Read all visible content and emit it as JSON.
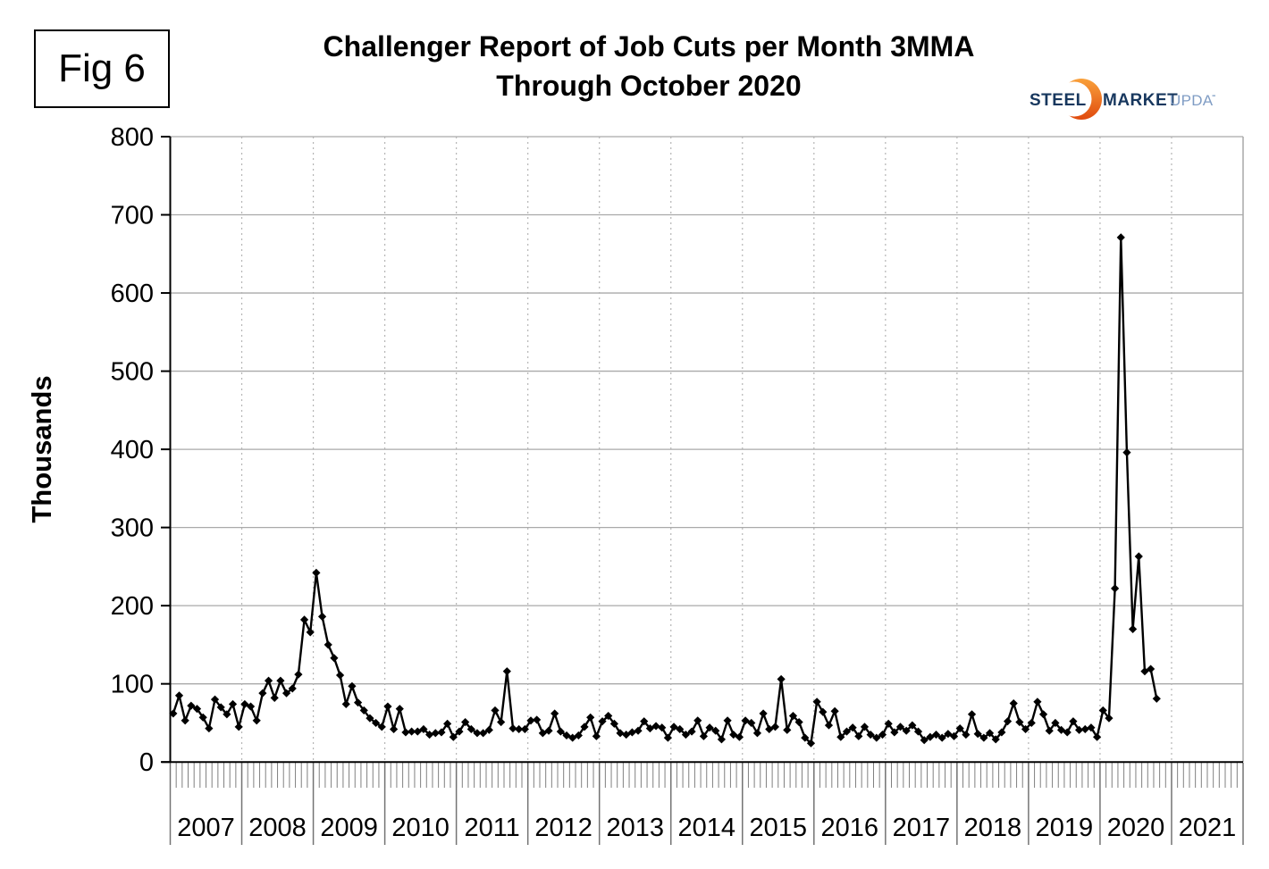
{
  "figure": {
    "label": "Fig 6"
  },
  "title": {
    "line1": "Challenger Report of Job Cuts per Month 3MMA",
    "line2": "Through October 2020"
  },
  "logo": {
    "steel": "STEEL",
    "market": "MARKET",
    "update": "UPDATE",
    "navy": "#17375e",
    "light_blue": "#7f9cc4",
    "orange_top": "#f9a13b",
    "orange_bottom": "#e04a0e"
  },
  "chart_data": {
    "type": "line",
    "title": "Challenger Report of Job Cuts per Month 3MMA",
    "subtitle": "Through October 2020",
    "xlabel": "",
    "ylabel": "Thousands",
    "ylim": [
      0,
      800
    ],
    "ytick_step": 100,
    "yticks": [
      0,
      100,
      200,
      300,
      400,
      500,
      600,
      700,
      800
    ],
    "x_year_labels": [
      "2007",
      "2008",
      "2009",
      "2010",
      "2011",
      "2012",
      "2013",
      "2014",
      "2015",
      "2016",
      "2017",
      "2018",
      "2019",
      "2020",
      "2021"
    ],
    "start_month": "2007-01",
    "end_month": "2020-10",
    "grid": true,
    "legend": false,
    "line_color": "#000000",
    "marker": "diamond",
    "gridline_color": "#a9a9a9",
    "series": [
      {
        "name": "Job cuts per month (thousands)",
        "values_by_year": {
          "2007": [
            62,
            85,
            53,
            72,
            68,
            57,
            43,
            80,
            70,
            61,
            74,
            45
          ],
          "2008": [
            74,
            71,
            53,
            88,
            104,
            82,
            104,
            88,
            94,
            112,
            182,
            166
          ],
          "2009": [
            242,
            186,
            150,
            133,
            111,
            74,
            97,
            76,
            66,
            56,
            50,
            45
          ],
          "2010": [
            71,
            42,
            68,
            38,
            39,
            39,
            42,
            35,
            37,
            38,
            49,
            32
          ],
          "2011": [
            39,
            51,
            42,
            37,
            37,
            41,
            66,
            51,
            116,
            43,
            42,
            42
          ],
          "2012": [
            53,
            54,
            37,
            40,
            62,
            39,
            34,
            31,
            34,
            45,
            57,
            33
          ],
          "2013": [
            52,
            59,
            49,
            37,
            35,
            38,
            40,
            52,
            43,
            46,
            44,
            31
          ],
          "2014": [
            45,
            42,
            35,
            39,
            53,
            33,
            44,
            40,
            29,
            53,
            35,
            32
          ],
          "2015": [
            53,
            50,
            37,
            62,
            42,
            45,
            106,
            41,
            59,
            51,
            31,
            24
          ],
          "2016": [
            77,
            64,
            47,
            65,
            32,
            39,
            44,
            33,
            45,
            35,
            31,
            35
          ],
          "2017": [
            49,
            38,
            45,
            40,
            47,
            39,
            28,
            32,
            35,
            31,
            36,
            33
          ],
          "2018": [
            43,
            35,
            61,
            36,
            31,
            37,
            29,
            38,
            52,
            75,
            51,
            42
          ],
          "2019": [
            50,
            77,
            61,
            40,
            50,
            41,
            38,
            52,
            41,
            42,
            44,
            32
          ],
          "2020": [
            66,
            56,
            222,
            671,
            396,
            170,
            263,
            116,
            119,
            81
          ]
        }
      }
    ]
  }
}
